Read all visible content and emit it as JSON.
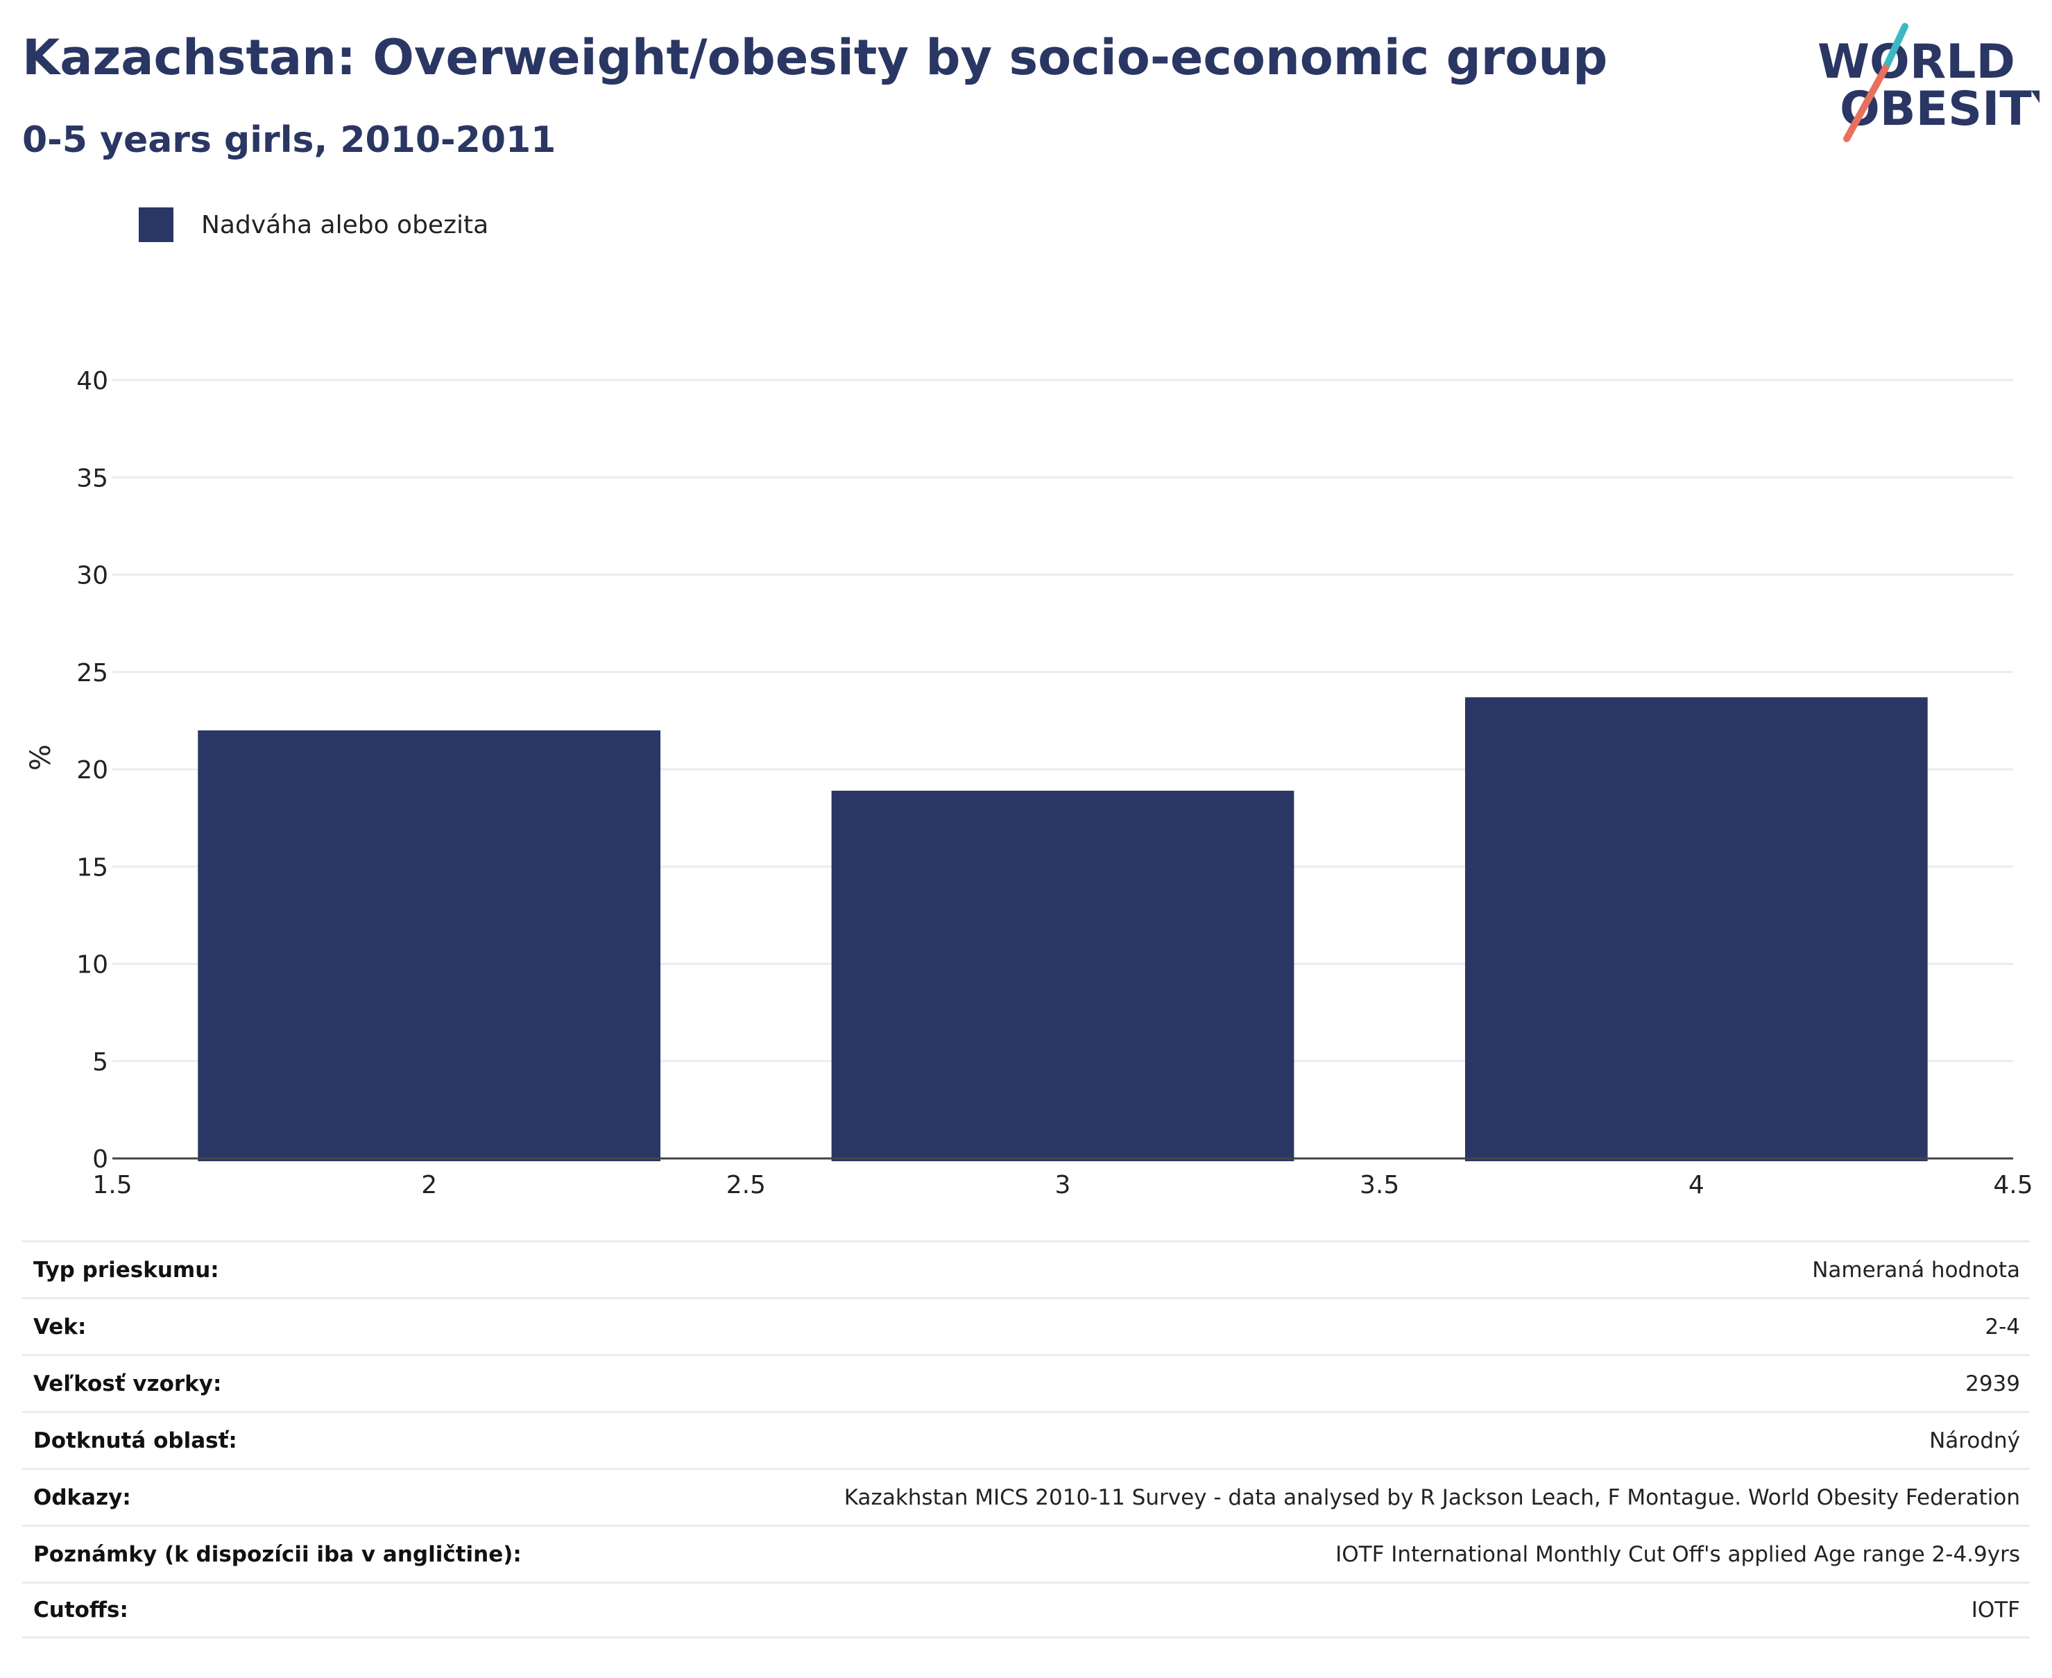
{
  "header": {
    "title": "Kazachstan: Overweight/obesity by socio-economic group",
    "subtitle": "0-5 years girls, 2010-2011"
  },
  "logo": {
    "line1": "WORLD",
    "line2": "OBESITY",
    "accent_colors": [
      "#3bb8c4",
      "#e8705f"
    ]
  },
  "colors": {
    "bar": "#2a3663",
    "grid": "#e8ecf1",
    "axis": "#444444",
    "text": "#2a3663"
  },
  "chart_data": {
    "type": "bar",
    "x": [
      2,
      3,
      4
    ],
    "series": [
      {
        "name": "Nadváha alebo obezita",
        "values": [
          22,
          18.9,
          23.7
        ]
      }
    ],
    "xlabel": "",
    "ylabel": "%",
    "xlim": [
      1.5,
      4.5
    ],
    "ylim": [
      0,
      40
    ],
    "xticks": [
      "1.5",
      "2",
      "2.5",
      "3",
      "3.5",
      "4",
      "4.5"
    ],
    "yticks": [
      "0",
      "5",
      "10",
      "15",
      "20",
      "25",
      "30",
      "35",
      "40"
    ],
    "grid": true,
    "legend": "top-left"
  },
  "info": [
    {
      "key": "Typ prieskumu:",
      "value": "Nameraná hodnota"
    },
    {
      "key": "Vek:",
      "value": "2-4"
    },
    {
      "key": "Veľkosť vzorky:",
      "value": "2939"
    },
    {
      "key": "Dotknutá oblasť:",
      "value": "Národný"
    },
    {
      "key": "Odkazy:",
      "value": "Kazakhstan MICS 2010-11 Survey - data analysed by R Jackson Leach, F Montague. World Obesity Federation"
    },
    {
      "key": "Poznámky (k dispozícii iba v angličtine):",
      "value": "IOTF International Monthly Cut Off's applied Age range 2-4.9yrs"
    },
    {
      "key": "Cutoffs:",
      "value": "IOTF"
    }
  ]
}
